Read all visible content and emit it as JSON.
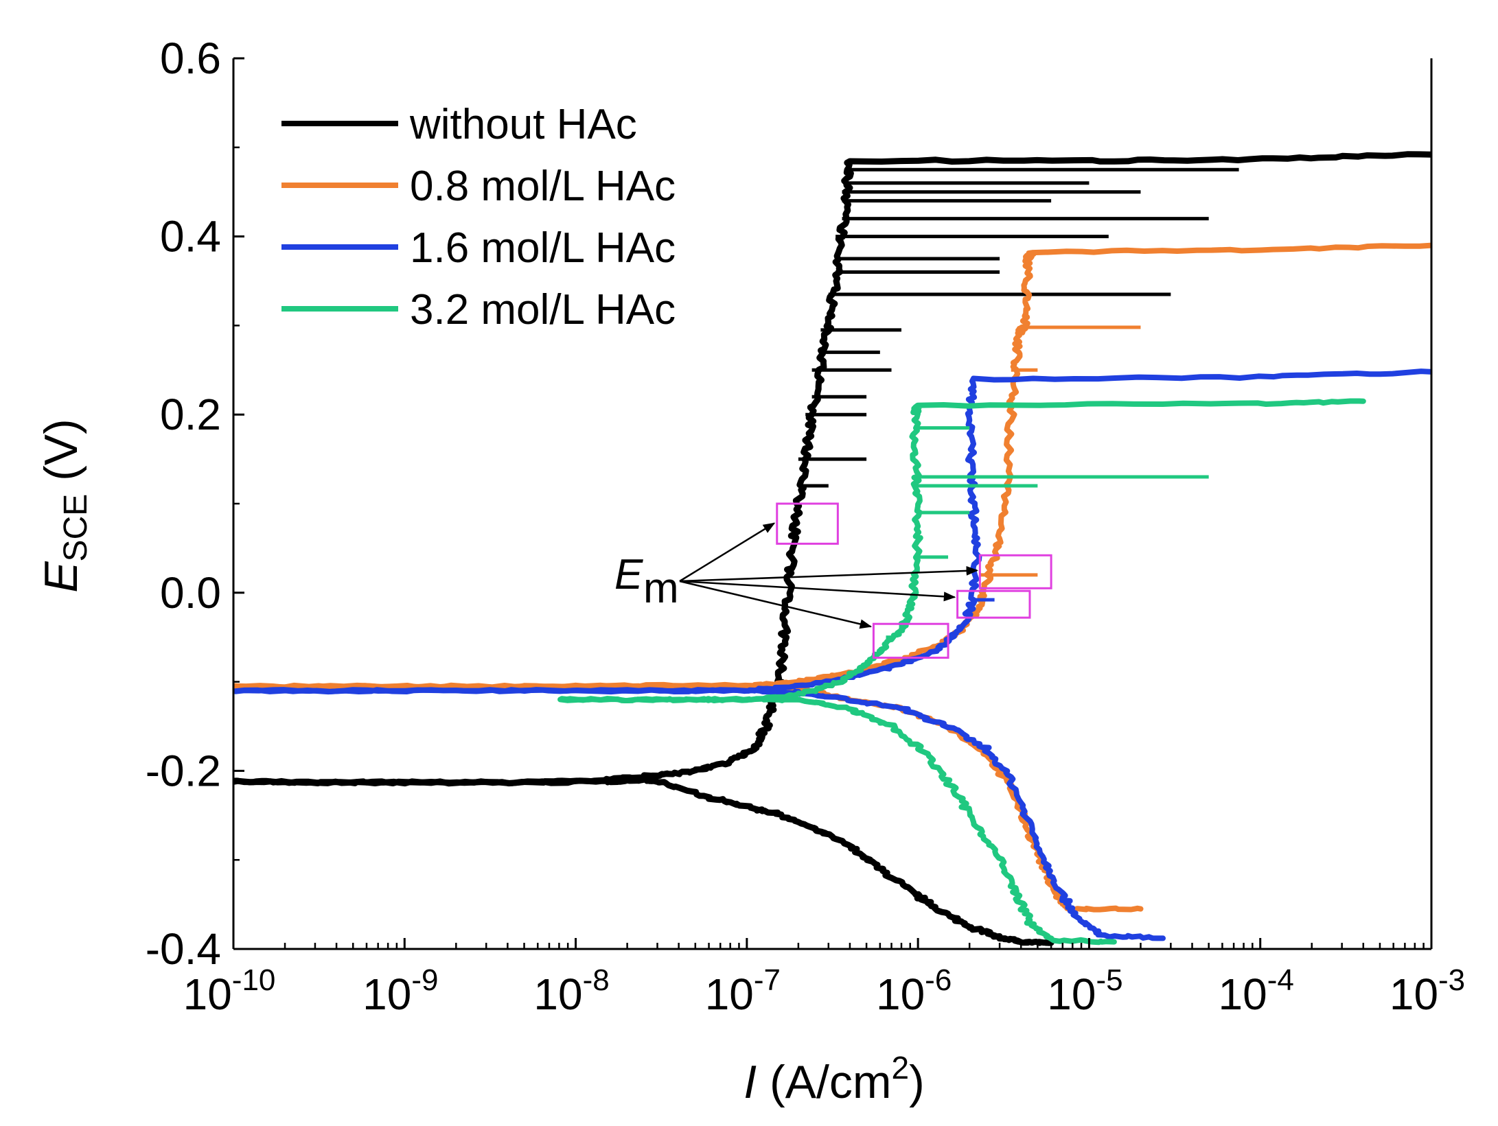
{
  "chart_data": {
    "type": "line",
    "x_scale": "log",
    "xlim": [
      1e-10,
      0.001
    ],
    "ylim": [
      -0.4,
      0.6
    ],
    "grid": false,
    "legend_position": "top-left",
    "xlabel": {
      "symbol": "I",
      "unit": " (A/cm",
      "sup": "2",
      "close": ")"
    },
    "ylabel": {
      "symbol": "E",
      "sub": "SCE",
      "unit": " (V)"
    },
    "x_ticks": [
      {
        "value": 1e-10,
        "base": "10",
        "exp": "-10"
      },
      {
        "value": 1e-09,
        "base": "10",
        "exp": "-9"
      },
      {
        "value": 1e-08,
        "base": "10",
        "exp": "-8"
      },
      {
        "value": 1e-07,
        "base": "10",
        "exp": "-7"
      },
      {
        "value": 1e-06,
        "base": "10",
        "exp": "-6"
      },
      {
        "value": 1e-05,
        "base": "10",
        "exp": "-5"
      },
      {
        "value": 0.0001,
        "base": "10",
        "exp": "-4"
      },
      {
        "value": 0.001,
        "base": "10",
        "exp": "-3"
      }
    ],
    "y_ticks": [
      {
        "value": 0.6,
        "label": "0.6"
      },
      {
        "value": 0.4,
        "label": "0.4"
      },
      {
        "value": 0.2,
        "label": "0.2"
      },
      {
        "value": 0.0,
        "label": "0.0"
      },
      {
        "value": -0.2,
        "label": "-0.2"
      },
      {
        "value": -0.4,
        "label": "-0.4"
      }
    ],
    "series": [
      {
        "name": "without HAc",
        "color": "#000000",
        "branches": [
          [
            [
              1e-10,
              -0.212
            ],
            [
              3e-10,
              -0.213
            ],
            [
              1e-09,
              -0.213
            ],
            [
              5e-09,
              -0.213
            ],
            [
              1.5e-08,
              -0.212
            ],
            [
              2.5e-08,
              -0.21
            ],
            [
              3e-08,
              -0.212
            ],
            [
              6e-08,
              -0.23
            ],
            [
              1e-07,
              -0.24
            ],
            [
              1.6e-07,
              -0.25
            ],
            [
              2.5e-07,
              -0.265
            ],
            [
              4e-07,
              -0.285
            ],
            [
              6e-07,
              -0.31
            ],
            [
              9e-07,
              -0.335
            ],
            [
              1.3e-06,
              -0.355
            ],
            [
              2e-06,
              -0.375
            ],
            [
              3e-06,
              -0.387
            ],
            [
              4e-06,
              -0.392
            ],
            [
              6e-06,
              -0.393
            ]
          ],
          [
            [
              1e-10,
              -0.212
            ],
            [
              3e-10,
              -0.213
            ],
            [
              1e-09,
              -0.213
            ],
            [
              5e-09,
              -0.213
            ],
            [
              1.5e-08,
              -0.21
            ],
            [
              3e-08,
              -0.205
            ],
            [
              5e-08,
              -0.2
            ],
            [
              8e-08,
              -0.19
            ],
            [
              1.1e-07,
              -0.175
            ],
            [
              1.3e-07,
              -0.15
            ],
            [
              1.45e-07,
              -0.12
            ],
            [
              1.55e-07,
              -0.1
            ],
            [
              1.65e-07,
              -0.05
            ],
            [
              1.75e-07,
              0.0
            ],
            [
              1.85e-07,
              0.05
            ],
            [
              2e-07,
              0.1
            ],
            [
              2.2e-07,
              0.15
            ],
            [
              2.4e-07,
              0.2
            ],
            [
              2.7e-07,
              0.25
            ],
            [
              3e-07,
              0.3
            ],
            [
              3.3e-07,
              0.35
            ],
            [
              3.6e-07,
              0.4
            ],
            [
              3.8e-07,
              0.45
            ],
            [
              4e-07,
              0.485
            ],
            [
              1e-05,
              0.485
            ],
            [
              0.0001,
              0.487
            ],
            [
              0.001,
              0.492
            ]
          ]
        ],
        "spikes": [
          [
            0.475,
            7.5e-05
          ],
          [
            0.46,
            1e-05
          ],
          [
            0.45,
            2e-05
          ],
          [
            0.44,
            6e-06
          ],
          [
            0.42,
            5e-05
          ],
          [
            0.4,
            1.3e-05
          ],
          [
            0.375,
            3e-06
          ],
          [
            0.36,
            3e-06
          ],
          [
            0.335,
            3e-05
          ],
          [
            0.295,
            8e-07
          ],
          [
            0.27,
            6e-07
          ],
          [
            0.25,
            7e-07
          ],
          [
            0.22,
            5e-07
          ],
          [
            0.2,
            5e-07
          ],
          [
            0.15,
            5e-07
          ],
          [
            0.12,
            3e-07
          ]
        ],
        "legend_label": "without HAc"
      },
      {
        "name": "0.8 mol/L HAc",
        "color": "#F08030",
        "branches": [
          [
            [
              1e-10,
              -0.105
            ],
            [
              1e-09,
              -0.105
            ],
            [
              1e-08,
              -0.105
            ],
            [
              1e-07,
              -0.106
            ],
            [
              2e-07,
              -0.108
            ],
            [
              4e-07,
              -0.12
            ],
            [
              8e-07,
              -0.13
            ],
            [
              1.5e-06,
              -0.15
            ],
            [
              2.5e-06,
              -0.18
            ],
            [
              3.5e-06,
              -0.22
            ],
            [
              4.5e-06,
              -0.27
            ],
            [
              5.5e-06,
              -0.31
            ],
            [
              6.5e-06,
              -0.34
            ],
            [
              7.5e-06,
              -0.355
            ],
            [
              2e-05,
              -0.355
            ]
          ],
          [
            [
              1e-10,
              -0.105
            ],
            [
              1e-09,
              -0.105
            ],
            [
              1e-08,
              -0.105
            ],
            [
              1e-07,
              -0.104
            ],
            [
              2e-07,
              -0.1
            ],
            [
              4e-07,
              -0.09
            ],
            [
              8e-07,
              -0.075
            ],
            [
              1.3e-06,
              -0.06
            ],
            [
              1.8e-06,
              -0.04
            ],
            [
              2.3e-06,
              -0.015
            ],
            [
              2.6e-06,
              0.02
            ],
            [
              3e-06,
              0.06
            ],
            [
              3.3e-06,
              0.12
            ],
            [
              3.5e-06,
              0.2
            ],
            [
              3.7e-06,
              0.25
            ],
            [
              3.9e-06,
              0.29
            ],
            [
              4.2e-06,
              0.3
            ],
            [
              4.3e-06,
              0.34
            ],
            [
              4.4e-06,
              0.375
            ],
            [
              4.6e-06,
              0.382
            ],
            [
              0.0001,
              0.385
            ],
            [
              0.001,
              0.39
            ]
          ]
        ],
        "spikes": [
          [
            0.298,
            2e-05
          ],
          [
            0.25,
            5e-06
          ],
          [
            0.02,
            5e-06
          ]
        ],
        "legend_label": "0.8 mol/L HAc"
      },
      {
        "name": "1.6 mol/L HAc",
        "color": "#2040E0",
        "branches": [
          [
            [
              1e-10,
              -0.11
            ],
            [
              1e-09,
              -0.11
            ],
            [
              1e-08,
              -0.11
            ],
            [
              1e-07,
              -0.11
            ],
            [
              2e-07,
              -0.112
            ],
            [
              4e-07,
              -0.12
            ],
            [
              8e-07,
              -0.13
            ],
            [
              1.5e-06,
              -0.15
            ],
            [
              2.5e-06,
              -0.175
            ],
            [
              3.5e-06,
              -0.21
            ],
            [
              4.5e-06,
              -0.26
            ],
            [
              5.5e-06,
              -0.3
            ],
            [
              7e-06,
              -0.34
            ],
            [
              9e-06,
              -0.37
            ],
            [
              1.2e-05,
              -0.385
            ],
            [
              2.7e-05,
              -0.388
            ]
          ],
          [
            [
              1e-10,
              -0.11
            ],
            [
              1e-09,
              -0.11
            ],
            [
              1e-08,
              -0.11
            ],
            [
              1e-07,
              -0.11
            ],
            [
              2e-07,
              -0.105
            ],
            [
              4e-07,
              -0.095
            ],
            [
              8e-07,
              -0.08
            ],
            [
              1.3e-06,
              -0.065
            ],
            [
              1.8e-06,
              -0.04
            ],
            [
              2.1e-06,
              -0.01
            ],
            [
              2.2e-06,
              0.05
            ],
            [
              2.1e-06,
              0.1
            ],
            [
              2.05e-06,
              0.15
            ],
            [
              2e-06,
              0.2
            ],
            [
              2.1e-06,
              0.24
            ],
            [
              0.0001,
              0.242
            ],
            [
              0.001,
              0.248
            ]
          ]
        ],
        "spikes": [
          [
            -0.008,
            2.8e-06
          ]
        ],
        "legend_label": "1.6 mol/L HAc"
      },
      {
        "name": "3.2 mol/L HAc",
        "color": "#20C880",
        "branches": [
          [
            [
              8e-09,
              -0.12
            ],
            [
              3e-08,
              -0.12
            ],
            [
              1e-07,
              -0.12
            ],
            [
              2e-07,
              -0.12
            ],
            [
              4e-07,
              -0.13
            ],
            [
              7e-07,
              -0.15
            ],
            [
              1.1e-06,
              -0.18
            ],
            [
              1.6e-06,
              -0.22
            ],
            [
              2.2e-06,
              -0.26
            ],
            [
              3e-06,
              -0.3
            ],
            [
              3.8e-06,
              -0.34
            ],
            [
              4.5e-06,
              -0.37
            ],
            [
              6e-06,
              -0.39
            ],
            [
              1.4e-05,
              -0.392
            ]
          ],
          [
            [
              8e-09,
              -0.12
            ],
            [
              3e-08,
              -0.12
            ],
            [
              1e-07,
              -0.12
            ],
            [
              2e-07,
              -0.115
            ],
            [
              3.5e-07,
              -0.1
            ],
            [
              5e-07,
              -0.08
            ],
            [
              6.5e-07,
              -0.06
            ],
            [
              8e-07,
              -0.04
            ],
            [
              9e-07,
              -0.02
            ],
            [
              9.5e-07,
              0.0
            ],
            [
              1e-06,
              0.05
            ],
            [
              9.8e-07,
              0.1
            ],
            [
              9.7e-07,
              0.15
            ],
            [
              9.6e-07,
              0.2
            ],
            [
              9.8e-07,
              0.21
            ],
            [
              0.0001,
              0.212
            ],
            [
              0.0004,
              0.215
            ]
          ]
        ],
        "spikes": [
          [
            0.185,
            2e-06
          ],
          [
            0.13,
            5e-05
          ],
          [
            0.12,
            5e-06
          ],
          [
            0.09,
            2e-06
          ],
          [
            0.04,
            1.5e-06
          ],
          [
            -0.05,
            7e-07
          ]
        ],
        "legend_label": "3.2 mol/L HAc"
      }
    ],
    "annotation": {
      "text_main": "E",
      "text_sub": "m",
      "boxes": [
        {
          "x": [
            1.5e-07,
            3.4e-07
          ],
          "y": [
            0.055,
            0.1
          ]
        },
        {
          "x": [
            2.3e-06,
            6e-06
          ],
          "y": [
            0.005,
            0.042
          ]
        },
        {
          "x": [
            1.7e-06,
            4.5e-06
          ],
          "y": [
            -0.028,
            0.002
          ]
        },
        {
          "x": [
            5.5e-07,
            1.5e-06
          ],
          "y": [
            -0.073,
            -0.035
          ]
        }
      ],
      "arrow_targets": [
        [
          1.5e-07,
          0.078
        ],
        [
          2.3e-06,
          0.025
        ],
        [
          1.7e-06,
          -0.005
        ],
        [
          5.5e-07,
          -0.038
        ]
      ],
      "box_color": "#E040E0"
    },
    "legend": [
      {
        "label": "without HAc",
        "color": "#000000"
      },
      {
        "label": "0.8 mol/L HAc",
        "color": "#F08030"
      },
      {
        "label": "1.6 mol/L HAc",
        "color": "#2040E0"
      },
      {
        "label": "3.2 mol/L HAc",
        "color": "#20C880"
      }
    ]
  }
}
